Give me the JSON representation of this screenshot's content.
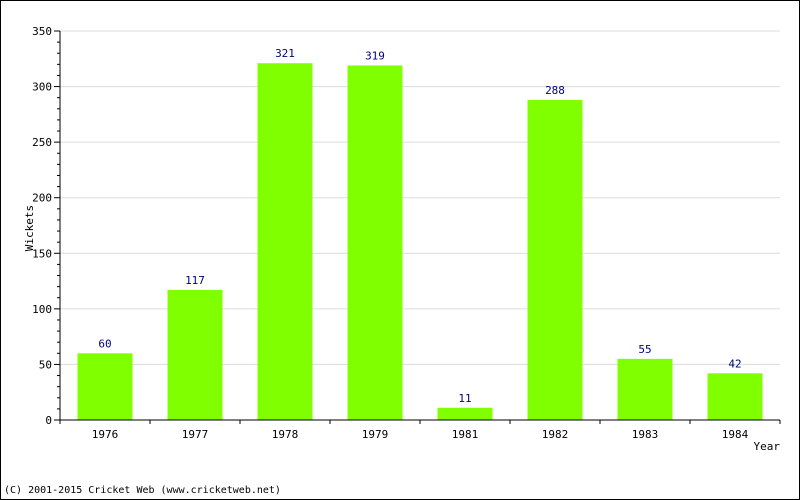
{
  "chart_data": {
    "type": "bar",
    "categories": [
      "1976",
      "1977",
      "1978",
      "1979",
      "1981",
      "1982",
      "1983",
      "1984"
    ],
    "values": [
      60,
      117,
      321,
      319,
      11,
      288,
      55,
      42
    ],
    "title": "",
    "xlabel": "Year",
    "ylabel": "Wickets",
    "ylim": [
      0,
      350
    ],
    "yticks": [
      0,
      50,
      100,
      150,
      200,
      250,
      300,
      350
    ],
    "grid": true,
    "legend": "none",
    "bar_color": "#80ff00",
    "label_color": "#000080"
  },
  "footer": {
    "copyright": "(C) 2001-2015 Cricket Web (www.cricketweb.net)"
  }
}
